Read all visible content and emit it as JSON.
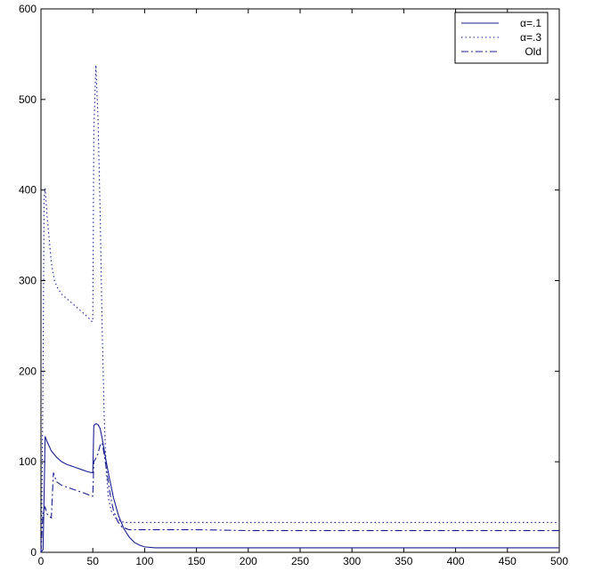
{
  "chart_data": {
    "type": "line",
    "xlim": [
      0,
      500
    ],
    "ylim": [
      0,
      600
    ],
    "xticks": [
      0,
      50,
      100,
      150,
      200,
      250,
      300,
      350,
      400,
      450,
      500
    ],
    "yticks": [
      0,
      100,
      200,
      300,
      400,
      500,
      600
    ],
    "grid": false,
    "legend_position": "top-right",
    "line_color": "#1a1f8f",
    "series": [
      {
        "name": "α=.1",
        "style": "solid",
        "points": [
          [
            0,
            0
          ],
          [
            2,
            3
          ],
          [
            3,
            60
          ],
          [
            4,
            128
          ],
          [
            6,
            122
          ],
          [
            10,
            112
          ],
          [
            15,
            105
          ],
          [
            20,
            100
          ],
          [
            25,
            97
          ],
          [
            30,
            95
          ],
          [
            35,
            93
          ],
          [
            40,
            91
          ],
          [
            45,
            89
          ],
          [
            49,
            88
          ],
          [
            50,
            88
          ],
          [
            51,
            140
          ],
          [
            53,
            142
          ],
          [
            55,
            141
          ],
          [
            57,
            137
          ],
          [
            59,
            126
          ],
          [
            62,
            106
          ],
          [
            66,
            82
          ],
          [
            70,
            60
          ],
          [
            75,
            40
          ],
          [
            80,
            26
          ],
          [
            85,
            17
          ],
          [
            90,
            11
          ],
          [
            95,
            8
          ],
          [
            100,
            6
          ],
          [
            110,
            5
          ],
          [
            120,
            5
          ],
          [
            150,
            5
          ],
          [
            200,
            5
          ],
          [
            300,
            5
          ],
          [
            400,
            5
          ],
          [
            500,
            5
          ]
        ]
      },
      {
        "name": "α=.3",
        "style": "dotted",
        "points": [
          [
            0,
            0
          ],
          [
            1,
            60
          ],
          [
            2,
            200
          ],
          [
            3,
            390
          ],
          [
            4,
            402
          ],
          [
            6,
            370
          ],
          [
            8,
            345
          ],
          [
            10,
            320
          ],
          [
            13,
            300
          ],
          [
            16,
            292
          ],
          [
            20,
            285
          ],
          [
            25,
            280
          ],
          [
            30,
            275
          ],
          [
            35,
            270
          ],
          [
            40,
            265
          ],
          [
            45,
            260
          ],
          [
            49,
            255
          ],
          [
            50,
            255
          ],
          [
            51,
            465
          ],
          [
            53,
            538
          ],
          [
            55,
            480
          ],
          [
            57,
            380
          ],
          [
            59,
            250
          ],
          [
            61,
            150
          ],
          [
            63,
            90
          ],
          [
            65,
            60
          ],
          [
            68,
            45
          ],
          [
            72,
            38
          ],
          [
            76,
            35
          ],
          [
            80,
            33
          ],
          [
            90,
            33
          ],
          [
            100,
            33
          ],
          [
            200,
            33
          ],
          [
            300,
            33
          ],
          [
            400,
            33
          ],
          [
            500,
            33
          ]
        ]
      },
      {
        "name": "Old",
        "style": "dashdot",
        "points": [
          [
            0,
            0
          ],
          [
            2,
            45
          ],
          [
            4,
            50
          ],
          [
            6,
            42
          ],
          [
            8,
            40
          ],
          [
            10,
            38
          ],
          [
            12,
            88
          ],
          [
            15,
            78
          ],
          [
            20,
            74
          ],
          [
            25,
            72
          ],
          [
            30,
            70
          ],
          [
            35,
            68
          ],
          [
            40,
            66
          ],
          [
            45,
            64
          ],
          [
            49,
            62
          ],
          [
            50,
            62
          ],
          [
            51,
            100
          ],
          [
            53,
            104
          ],
          [
            55,
            109
          ],
          [
            57,
            118
          ],
          [
            59,
            121
          ],
          [
            61,
            108
          ],
          [
            64,
            85
          ],
          [
            67,
            62
          ],
          [
            70,
            46
          ],
          [
            74,
            34
          ],
          [
            78,
            28
          ],
          [
            85,
            25
          ],
          [
            100,
            25
          ],
          [
            150,
            25
          ],
          [
            200,
            24
          ],
          [
            250,
            24
          ],
          [
            300,
            24
          ],
          [
            350,
            24
          ],
          [
            400,
            24
          ],
          [
            450,
            24
          ],
          [
            500,
            24
          ]
        ]
      }
    ]
  }
}
